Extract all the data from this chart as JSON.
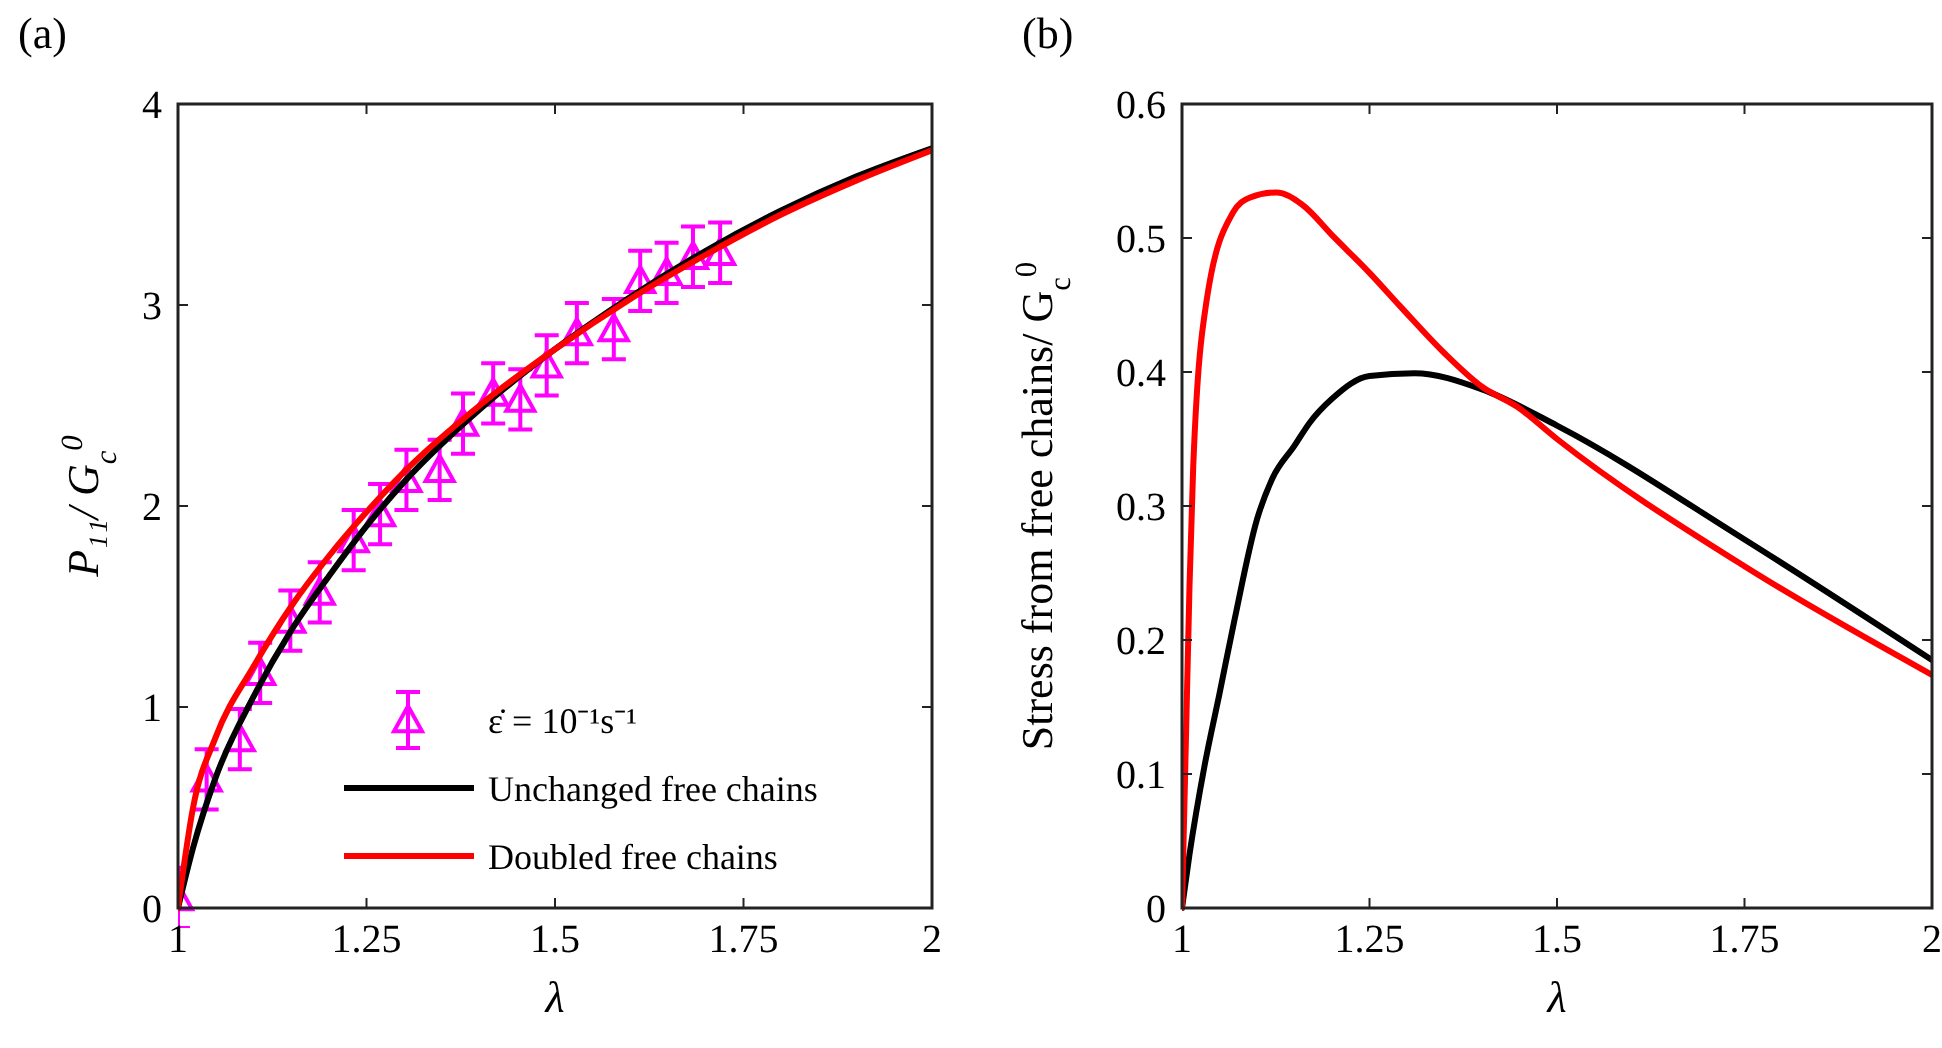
{
  "chart_data": [
    {
      "type": "line",
      "title": "(a)",
      "xlabel": "λ",
      "ylabel": "P₁₁/ G$_{c}$$^{0}$",
      "xlim": [
        1,
        2
      ],
      "ylim": [
        0,
        4
      ],
      "xticks": [
        1,
        1.25,
        1.5,
        1.75,
        2
      ],
      "yticks": [
        0,
        1,
        2,
        3,
        4
      ],
      "legend": "bottom right",
      "series": [
        {
          "type": "scatter",
          "name": "ε̇ = 10⁻¹s⁻¹",
          "color": "#ff00ff",
          "marker": "triangle",
          "x": [
            1.0,
            1.038,
            1.082,
            1.109,
            1.149,
            1.188,
            1.233,
            1.268,
            1.303,
            1.347,
            1.378,
            1.418,
            1.454,
            1.489,
            1.529,
            1.578,
            1.613,
            1.648,
            1.683,
            1.719
          ],
          "values": [
            0.05,
            0.64,
            0.84,
            1.17,
            1.43,
            1.57,
            1.83,
            1.96,
            2.13,
            2.18,
            2.41,
            2.56,
            2.53,
            2.7,
            2.86,
            2.88,
            3.12,
            3.16,
            3.24,
            3.26
          ],
          "errors": [
            0.15,
            0.15,
            0.15,
            0.15,
            0.15,
            0.15,
            0.15,
            0.15,
            0.15,
            0.15,
            0.15,
            0.15,
            0.15,
            0.15,
            0.15,
            0.15,
            0.15,
            0.15,
            0.15,
            0.15
          ]
        },
        {
          "name": "Unchanged free chains",
          "color": "#000000",
          "x": [
            1.0,
            1.02,
            1.05,
            1.1,
            1.15,
            1.2,
            1.25,
            1.3,
            1.4,
            1.5,
            1.6,
            1.7,
            1.8,
            1.9,
            2.0
          ],
          "values": [
            0,
            0.3,
            0.65,
            1.05,
            1.38,
            1.65,
            1.9,
            2.12,
            2.48,
            2.78,
            3.04,
            3.27,
            3.47,
            3.64,
            3.78
          ]
        },
        {
          "name": "Doubled free chains",
          "color": "#ff0000",
          "x": [
            1.0,
            1.02,
            1.05,
            1.1,
            1.15,
            1.2,
            1.25,
            1.3,
            1.4,
            1.5,
            1.6,
            1.7,
            1.8,
            1.9,
            2.0
          ],
          "values": [
            0,
            0.5,
            0.85,
            1.2,
            1.5,
            1.75,
            1.97,
            2.17,
            2.5,
            2.78,
            3.03,
            3.25,
            3.45,
            3.62,
            3.77
          ]
        }
      ]
    },
    {
      "type": "line",
      "title": "(b)",
      "xlabel": "λ",
      "ylabel": "Stress from free chains/ G$_{c}$$^{0}$",
      "xlim": [
        1,
        2
      ],
      "ylim": [
        0,
        0.6
      ],
      "xticks": [
        1,
        1.25,
        1.5,
        1.75,
        2
      ],
      "yticks": [
        0,
        0.1,
        0.2,
        0.3,
        0.4,
        0.5,
        0.6
      ],
      "series": [
        {
          "color": "#000000",
          "x": [
            1.0,
            1.01,
            1.03,
            1.05,
            1.07,
            1.1,
            1.12,
            1.15,
            1.17,
            1.2,
            1.25,
            1.31,
            1.4,
            1.5,
            1.75,
            2.0
          ],
          "values": [
            0,
            0.04,
            0.106,
            0.16,
            0.215,
            0.29,
            0.32,
            0.345,
            0.362,
            0.38,
            0.397,
            0.399,
            0.387,
            0.36,
            0.275,
            0.185
          ]
        },
        {
          "color": "#ff0000",
          "x": [
            1.0,
            1.005,
            1.01,
            1.015,
            1.033,
            1.068,
            1.09,
            1.126,
            1.16,
            1.202,
            1.25,
            1.291,
            1.35,
            1.4,
            1.447,
            1.5,
            1.75,
            2.0
          ],
          "values": [
            0,
            0.12,
            0.24,
            0.33,
            0.454,
            0.519,
            0.53,
            0.534,
            0.525,
            0.501,
            0.474,
            0.449,
            0.414,
            0.389,
            0.374,
            0.35,
            0.255,
            0.174
          ]
        }
      ]
    }
  ]
}
